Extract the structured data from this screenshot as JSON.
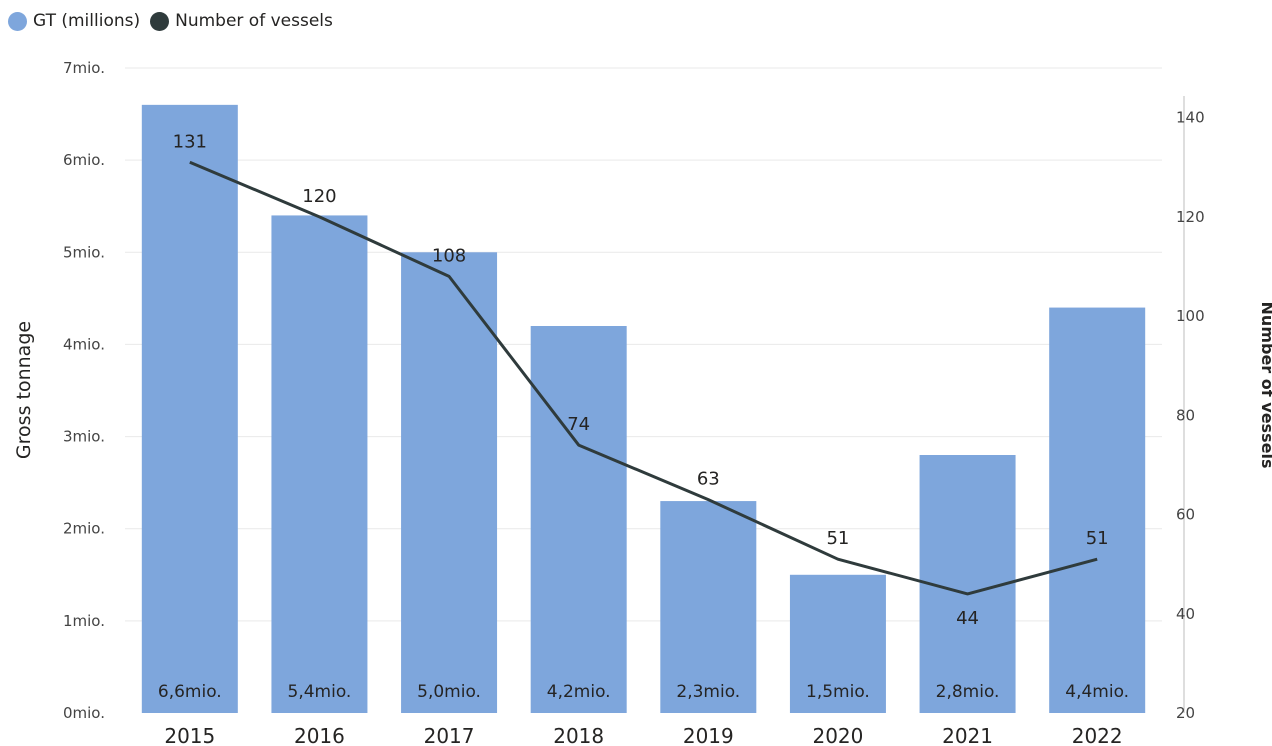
{
  "legend": {
    "gt_label": "GT (millions)",
    "vessels_label": "Number of vessels"
  },
  "colors": {
    "bar": "#7ea6dc",
    "line": "#2f3b3c",
    "grid": "#e9e9e9",
    "axis": "#666666"
  },
  "chart_data": {
    "type": "bar",
    "categories": [
      "2015",
      "2016",
      "2017",
      "2018",
      "2019",
      "2020",
      "2021",
      "2022"
    ],
    "series": [
      {
        "name": "GT (millions)",
        "type": "bar",
        "axis": "left",
        "values": [
          6.6,
          5.4,
          5.0,
          4.2,
          2.3,
          1.5,
          2.8,
          4.4
        ],
        "data_labels": [
          "6,6mio.",
          "5,4mio.",
          "5,0mio.",
          "4,2mio.",
          "2,3mio.",
          "1,5mio.",
          "2,8mio.",
          "4,4mio."
        ]
      },
      {
        "name": "Number of vessels",
        "type": "line",
        "axis": "right",
        "values": [
          131,
          120,
          108,
          74,
          63,
          51,
          44,
          51
        ],
        "data_labels": [
          "131",
          "120",
          "108",
          "74",
          "63",
          "51",
          "44",
          "51"
        ]
      }
    ],
    "y_left": {
      "label": "Gross tonnage",
      "range": [
        0,
        7
      ],
      "ticks": [
        0,
        1,
        2,
        3,
        4,
        5,
        6,
        7
      ],
      "tick_labels": [
        "0mio.",
        "1mio.",
        "2mio.",
        "3mio.",
        "4mio.",
        "5mio.",
        "6mio.",
        "7mio."
      ]
    },
    "y_right": {
      "label": "Number of vessels",
      "range": [
        20,
        150
      ],
      "ticks": [
        20,
        40,
        60,
        80,
        100,
        120,
        140
      ],
      "tick_labels": [
        "20",
        "40",
        "60",
        "80",
        "100",
        "120",
        "140"
      ]
    },
    "grid": true,
    "legend_position": "top-left"
  }
}
